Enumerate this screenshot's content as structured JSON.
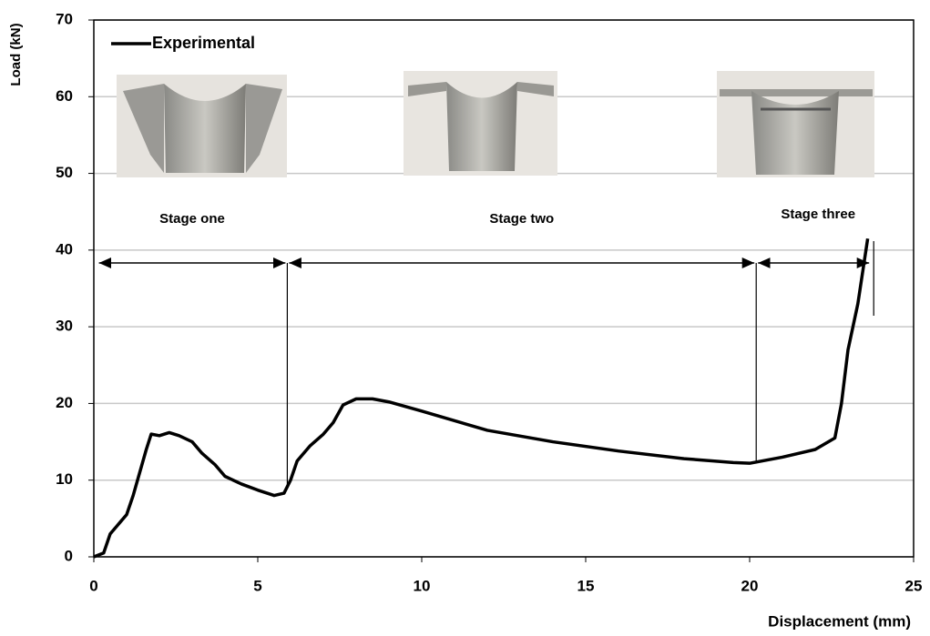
{
  "chart_data": {
    "type": "line",
    "x_label": "Displacement (mm)",
    "y_label": "Load (kN)",
    "xlim": [
      0,
      25
    ],
    "ylim": [
      0,
      70
    ],
    "xticks": [
      0,
      5,
      10,
      15,
      20,
      25
    ],
    "yticks": [
      0,
      10,
      20,
      30,
      40,
      50,
      60,
      70
    ],
    "grid": true,
    "legend": "upper left",
    "series": [
      {
        "name": "Experimental",
        "color": "#000000",
        "x": [
          0,
          0.3,
          0.5,
          0.8,
          1.0,
          1.2,
          1.4,
          1.6,
          1.75,
          2.0,
          2.3,
          2.6,
          3.0,
          3.3,
          3.7,
          4.0,
          4.5,
          5.0,
          5.5,
          5.8,
          6.0,
          6.2,
          6.6,
          7.0,
          7.3,
          7.6,
          8.0,
          8.5,
          9.0,
          10,
          12,
          14,
          16,
          18,
          19.5,
          20,
          21,
          22,
          22.6,
          22.8,
          23.0,
          23.3,
          23.6
        ],
        "values": [
          0,
          0.5,
          3,
          4.5,
          5.5,
          8,
          11,
          14,
          16,
          15.8,
          16.2,
          15.8,
          15,
          13.5,
          12,
          10.5,
          9.5,
          8.7,
          8,
          8.3,
          10,
          12.5,
          14.5,
          16,
          17.5,
          19.8,
          20.6,
          20.6,
          20.2,
          19,
          16.5,
          15,
          13.8,
          12.8,
          12.3,
          12.2,
          13,
          14,
          15.5,
          20,
          27,
          33,
          41.5
        ]
      }
    ],
    "stages": [
      {
        "label": "Stage one",
        "range": [
          0.1,
          5.9
        ]
      },
      {
        "label": "Stage two",
        "range": [
          5.9,
          20.2
        ]
      },
      {
        "label": "Stage three",
        "range": [
          20.2,
          23.7
        ]
      }
    ]
  }
}
